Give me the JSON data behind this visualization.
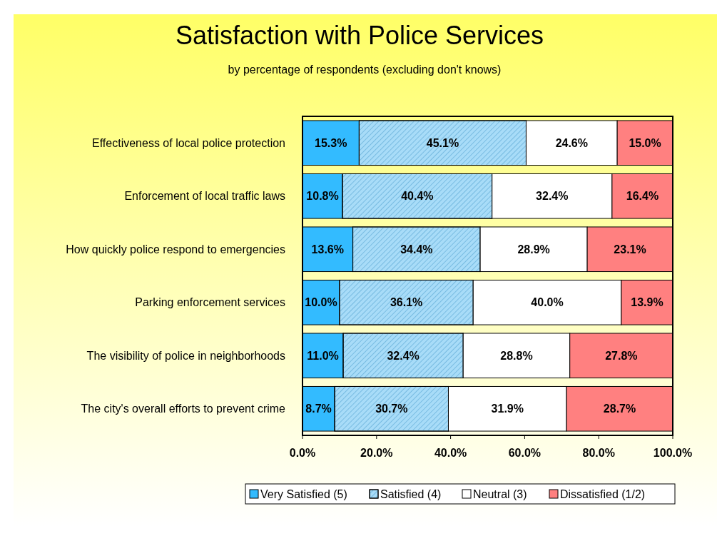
{
  "chart_data": {
    "type": "bar",
    "orientation": "horizontal",
    "stacked": true,
    "title": "Satisfaction with Police Services",
    "subtitle": "by percentage of respondents (excluding don't knows)",
    "categories": [
      "Effectiveness of local police protection",
      "Enforcement of local traffic laws",
      "How quickly police respond to emergencies",
      "Parking enforcement services",
      "The visibility of police in neighborhoods",
      "The city's overall efforts to prevent crime"
    ],
    "series": [
      {
        "name": "Very Satisfied (5)",
        "color": "#33bbff",
        "values": [
          15.3,
          10.8,
          13.6,
          10.0,
          11.0,
          8.7
        ],
        "value_labels": [
          "15.3%",
          "10.8%",
          "13.6%",
          "10.0%",
          "11.0%",
          "8.7%"
        ]
      },
      {
        "name": "Satisfied (4)",
        "color": "#a8dcf8",
        "values": [
          45.1,
          40.4,
          34.4,
          36.1,
          32.4,
          30.7
        ],
        "value_labels": [
          "45.1%",
          "40.4%",
          "34.4%",
          "36.1%",
          "32.4%",
          "30.7%"
        ]
      },
      {
        "name": "Neutral (3)",
        "color": "#ffffff",
        "values": [
          24.6,
          32.4,
          28.9,
          40.0,
          28.8,
          31.9
        ],
        "value_labels": [
          "24.6%",
          "32.4%",
          "28.9%",
          "40.0%",
          "28.8%",
          "31.9%"
        ]
      },
      {
        "name": "Dissatisfied (1/2)",
        "color": "#ff8080",
        "values": [
          15.0,
          16.4,
          23.1,
          13.9,
          27.8,
          28.7
        ],
        "value_labels": [
          "15.0%",
          "16.4%",
          "23.1%",
          "13.9%",
          "27.8%",
          "28.7%"
        ]
      }
    ],
    "xlim": [
      0,
      100
    ],
    "xticks": [
      {
        "value": 0,
        "label": "0.0%"
      },
      {
        "value": 20,
        "label": "20.0%"
      },
      {
        "value": 40,
        "label": "40.0%"
      },
      {
        "value": 60,
        "label": "60.0%"
      },
      {
        "value": 80,
        "label": "80.0%"
      },
      {
        "value": 100,
        "label": "100.0%"
      }
    ],
    "grid": false,
    "legend": "bottom"
  }
}
